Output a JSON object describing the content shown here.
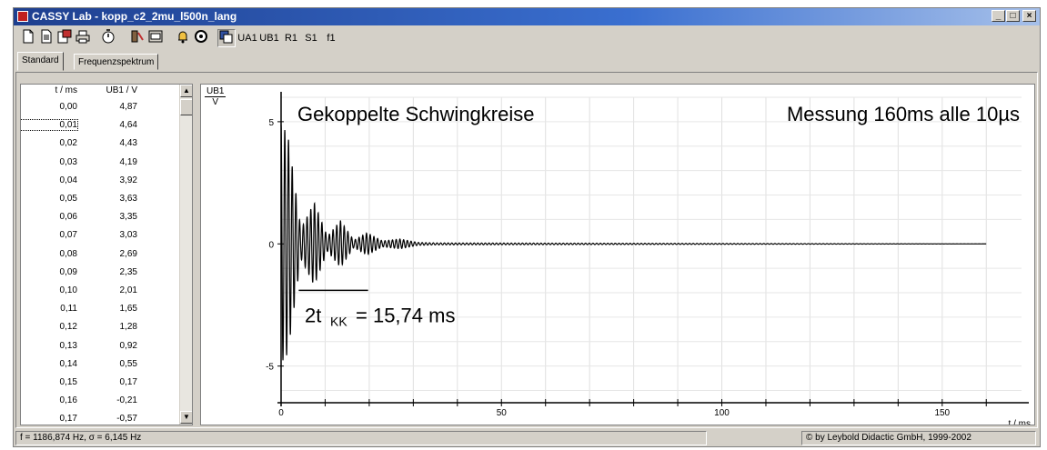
{
  "window": {
    "title": "CASSY Lab - kopp_c2_2mu_l500n_lang"
  },
  "titlebar_buttons": [
    "_",
    "□",
    "×"
  ],
  "toolbar": {
    "icons": [
      "new-file-icon",
      "open-file-icon",
      "save-file-icon",
      "print-icon",
      "stopwatch-icon",
      "settings-icon",
      "display-icon",
      "bell-icon",
      "sound-icon",
      "channel-display-icon"
    ],
    "channel_buttons": [
      "UA1",
      "UB1",
      "R1",
      "S1",
      "f1"
    ]
  },
  "tabs": [
    {
      "label": "Standard"
    },
    {
      "label": "Frequenzspektrum"
    }
  ],
  "table": {
    "col1_header": "t / ms",
    "col2_header": "UB1 / V",
    "rows": [
      {
        "t": "0,00",
        "u": "4,87"
      },
      {
        "t": "0,01",
        "u": "4,64"
      },
      {
        "t": "0,02",
        "u": "4,43"
      },
      {
        "t": "0,03",
        "u": "4,19"
      },
      {
        "t": "0,04",
        "u": "3,92"
      },
      {
        "t": "0,05",
        "u": "3,63"
      },
      {
        "t": "0,06",
        "u": "3,35"
      },
      {
        "t": "0,07",
        "u": "3,03"
      },
      {
        "t": "0,08",
        "u": "2,69"
      },
      {
        "t": "0,09",
        "u": "2,35"
      },
      {
        "t": "0,10",
        "u": "2,01"
      },
      {
        "t": "0,11",
        "u": "1,65"
      },
      {
        "t": "0,12",
        "u": "1,28"
      },
      {
        "t": "0,13",
        "u": "0,92"
      },
      {
        "t": "0,14",
        "u": "0,55"
      },
      {
        "t": "0,15",
        "u": "0,17"
      },
      {
        "t": "0,16",
        "u": "-0,21"
      },
      {
        "t": "0,17",
        "u": "-0,57"
      }
    ]
  },
  "chart_data": {
    "type": "line",
    "ylabel_top": "UB1",
    "ylabel_unit": "V",
    "xlabel": "t / ms",
    "xlim": [
      0,
      168
    ],
    "ylim": [
      -6.5,
      6
    ],
    "xticks": [
      0,
      50,
      100,
      150
    ],
    "yticks": [
      5,
      0,
      -5
    ],
    "grid": true,
    "annotations": {
      "title": "Gekoppelte Schwingkreise",
      "measurement": "Messung  160ms  alle 10µs",
      "period_label": "2t",
      "period_sub": "KK",
      "period_value": "=  15,74 ms"
    },
    "period_marker_ms": [
      4,
      19.74
    ],
    "period_marker_y": -1.9,
    "beat_envelope": [
      {
        "t": 0,
        "amp": 4.87
      },
      {
        "t": 1.5,
        "amp": 4.5
      },
      {
        "t": 4.5,
        "amp": 0.6
      },
      {
        "t": 7.5,
        "amp": 1.7
      },
      {
        "t": 10.5,
        "amp": 0.3
      },
      {
        "t": 13.5,
        "amp": 0.95
      },
      {
        "t": 16.5,
        "amp": 0.15
      },
      {
        "t": 19.5,
        "amp": 0.45
      },
      {
        "t": 23,
        "amp": 0.12
      },
      {
        "t": 27,
        "amp": 0.2
      },
      {
        "t": 31,
        "amp": 0.06
      },
      {
        "t": 35,
        "amp": 0.04
      },
      {
        "t": 160,
        "amp": 0.0
      }
    ],
    "series": [
      {
        "name": "UB1",
        "color": "#000000"
      }
    ]
  },
  "statusbar": {
    "left": "f = 1186,874 Hz,  σ = 6,145 Hz",
    "right": "© by Leybold Didactic GmbH, 1999-2002"
  }
}
